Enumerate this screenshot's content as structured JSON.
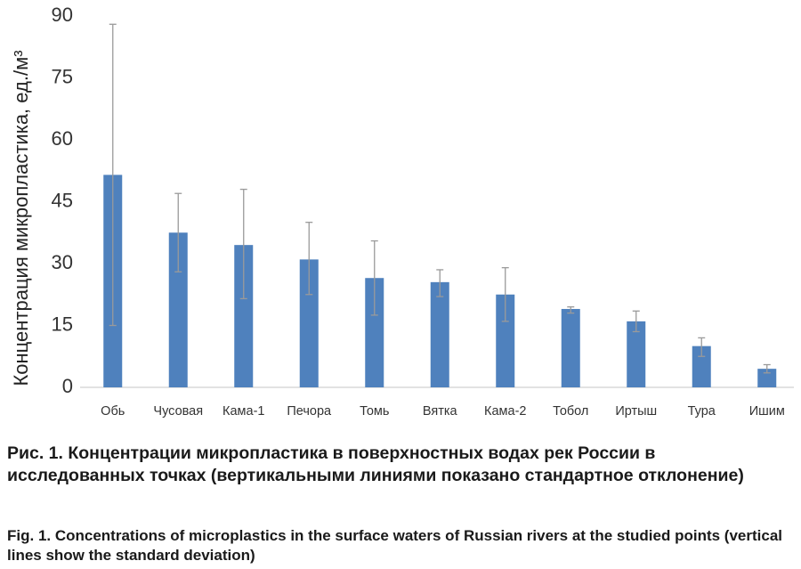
{
  "chart_data": {
    "type": "bar",
    "ylabel": "Концентрация микропластика, ед./м³",
    "xlabel": "",
    "ylim": [
      0,
      90
    ],
    "yticks": [
      0,
      15,
      30,
      45,
      60,
      75,
      90
    ],
    "grid": false,
    "categories": [
      "Обь",
      "Чусовая",
      "Кама-1",
      "Печора",
      "Томь",
      "Вятка",
      "Кама-2",
      "Тобол",
      "Иртыш",
      "Тура",
      "Ишим"
    ],
    "values": [
      51.5,
      37.5,
      34.5,
      31.0,
      26.5,
      25.5,
      22.5,
      19.0,
      16.0,
      10.0,
      4.5
    ],
    "error_low": [
      15.0,
      28.0,
      21.5,
      22.5,
      17.5,
      22.0,
      16.0,
      18.0,
      13.5,
      7.5,
      3.5
    ],
    "error_high": [
      88.0,
      47.0,
      48.0,
      40.0,
      35.5,
      28.5,
      29.0,
      19.5,
      18.5,
      12.0,
      5.5
    ],
    "bar_color": "#4f81bd",
    "error_color": "#9a9a9a"
  },
  "captions": {
    "ru": "Рис. 1. Концентрации микропластика в поверхностных водах рек России в исследованных точках (вертикальными линиями показано стандартное отклонение)",
    "en": "Fig. 1. Concentrations of microplastics in the surface waters of Russian rivers at the studied points (vertical lines show the standard deviation)"
  }
}
